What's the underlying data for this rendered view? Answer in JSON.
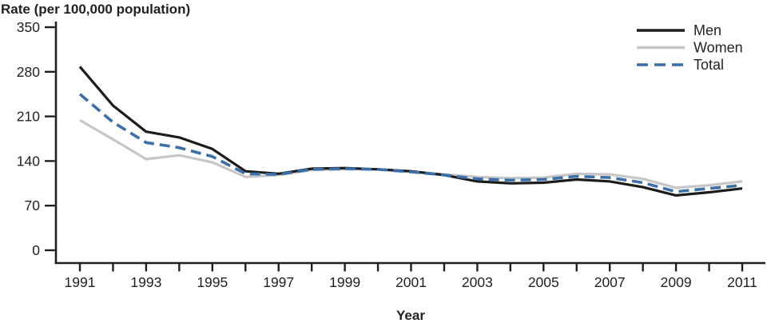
{
  "chart_data": {
    "type": "line",
    "title": "Rate (per 100,000 population)",
    "xlabel": "Year",
    "ylabel": "Rate (per 100,000 population)",
    "x": [
      1991,
      1992,
      1993,
      1994,
      1995,
      1996,
      1997,
      1998,
      1999,
      2000,
      2001,
      2002,
      2003,
      2004,
      2005,
      2006,
      2007,
      2008,
      2009,
      2010,
      2011
    ],
    "x_tick_labels": [
      1991,
      1993,
      1995,
      1997,
      1999,
      2001,
      2003,
      2005,
      2007,
      2009,
      2011
    ],
    "y_ticks": [
      0,
      70,
      140,
      210,
      280,
      350
    ],
    "ylim": [
      0,
      350
    ],
    "grid": false,
    "legend_position": "top-right",
    "draw_order": [
      1,
      0,
      2
    ],
    "axis_color": "#231f20",
    "text_color": "#231f20",
    "series": [
      {
        "name": "Men",
        "color": "#1c1c1c",
        "style": "solid",
        "values": [
          288,
          227,
          186,
          177,
          159,
          124,
          120,
          128,
          129,
          127,
          124,
          118,
          108,
          105,
          106,
          111,
          108,
          99,
          86,
          91,
          97
        ]
      },
      {
        "name": "Women",
        "color": "#c6c6c8",
        "style": "solid",
        "values": [
          204,
          174,
          143,
          149,
          138,
          115,
          118,
          126,
          127,
          127,
          123,
          119,
          115,
          113,
          114,
          120,
          119,
          112,
          98,
          102,
          108
        ]
      },
      {
        "name": "Total",
        "color": "#3a6fa8",
        "style": "dashed",
        "dash": [
          13,
          7
        ],
        "values": [
          245,
          201,
          169,
          161,
          147,
          120,
          119,
          127,
          128,
          127,
          123,
          118,
          112,
          110,
          111,
          116,
          114,
          106,
          92,
          97,
          102
        ]
      }
    ]
  }
}
